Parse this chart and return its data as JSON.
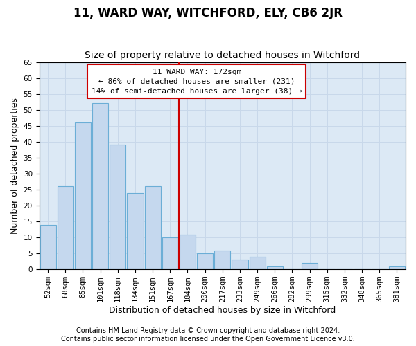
{
  "title": "11, WARD WAY, WITCHFORD, ELY, CB6 2JR",
  "subtitle": "Size of property relative to detached houses in Witchford",
  "xlabel": "Distribution of detached houses by size in Witchford",
  "ylabel": "Number of detached properties",
  "footer_line1": "Contains HM Land Registry data © Crown copyright and database right 2024.",
  "footer_line2": "Contains public sector information licensed under the Open Government Licence v3.0.",
  "bar_labels": [
    "52sqm",
    "68sqm",
    "85sqm",
    "101sqm",
    "118sqm",
    "134sqm",
    "151sqm",
    "167sqm",
    "184sqm",
    "200sqm",
    "217sqm",
    "233sqm",
    "249sqm",
    "266sqm",
    "282sqm",
    "299sqm",
    "315sqm",
    "332sqm",
    "348sqm",
    "365sqm",
    "381sqm"
  ],
  "bar_values": [
    14,
    26,
    46,
    52,
    39,
    24,
    26,
    10,
    11,
    5,
    6,
    3,
    4,
    1,
    0,
    2,
    0,
    0,
    0,
    0,
    1
  ],
  "bar_color": "#c5d8ee",
  "bar_edge_color": "#6baed6",
  "property_label": "11 WARD WAY: 172sqm",
  "annotation_line1": "← 86% of detached houses are smaller (231)",
  "annotation_line2": "14% of semi-detached houses are larger (38) →",
  "vline_color": "#cc0000",
  "annotation_box_color": "#ffffff",
  "annotation_box_edge": "#cc0000",
  "ylim": [
    0,
    65
  ],
  "yticks": [
    0,
    5,
    10,
    15,
    20,
    25,
    30,
    35,
    40,
    45,
    50,
    55,
    60,
    65
  ],
  "grid_color": "#c8d8ea",
  "background_color": "#dce9f5",
  "title_fontsize": 12,
  "subtitle_fontsize": 10,
  "axis_label_fontsize": 9,
  "tick_fontsize": 7.5,
  "annotation_fontsize": 8,
  "footer_fontsize": 7
}
